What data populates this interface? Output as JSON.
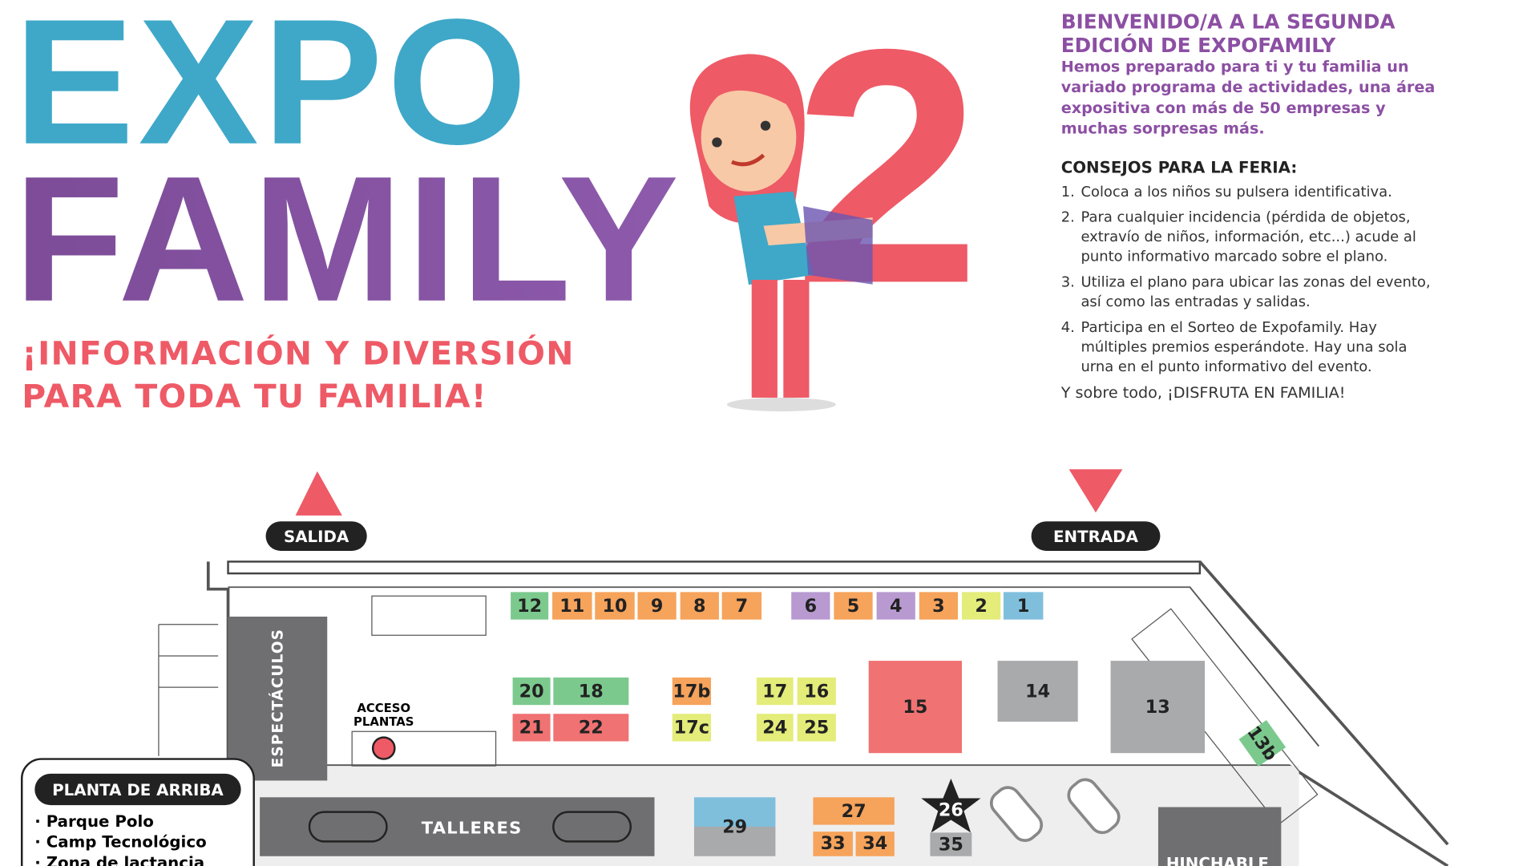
{
  "header": {
    "logo_line1": "EXPO",
    "logo_line2": "FAMILY",
    "logo_number": "2",
    "tagline": [
      "¡INFORMACIÓN Y DIVERSIÓN",
      "PARA TODA TU FAMILIA!"
    ]
  },
  "welcome": {
    "title": [
      "BIENVENIDO/A A LA SEGUNDA",
      "EDICIÓN DE EXPOFAMILY"
    ],
    "body": [
      "Hemos preparado para ti y tu familia un",
      "variado programa de actividades, una área",
      "expositiva con más de 50 empresas y",
      "muchas sorpresas más."
    ]
  },
  "tips": {
    "title": "CONSEJOS PARA LA FERIA:",
    "items": [
      {
        "number": "1.",
        "lines": [
          "Coloca a los niños su pulsera identificativa."
        ]
      },
      {
        "number": "2.",
        "lines": [
          "Para cualquier incidencia (pérdida de objetos,",
          "extravío de niños, información, etc...) acude al",
          "punto informativo marcado sobre el plano."
        ]
      },
      {
        "number": "3.",
        "lines": [
          "Utiliza el plano para ubicar las zonas del evento,",
          "así como las entradas y salidas."
        ]
      },
      {
        "number": "4.",
        "lines": [
          "Participa en el Sorteo de Expofamily. Hay",
          "múltiples premios esperándote. Hay una sola",
          "urna en el punto informativo del evento."
        ]
      }
    ],
    "closing": "Y sobre todo, ¡DISFRUTA EN FAMILIA!"
  },
  "map": {
    "exit": "SALIDA",
    "entrance": "ENTRADA",
    "shows": "ESPECTÁCULOS",
    "workshops": "TALLERES",
    "bouncy": "HINCHABLE",
    "plant_access": [
      "ACCESO",
      "PLANTAS"
    ],
    "upper_floor": {
      "title": "PLANTA DE ARRIBA",
      "items": [
        "· Parque Polo",
        "· Camp Tecnológico",
        "· Zona de lactancia"
      ]
    },
    "booths": [
      "12",
      "11",
      "10",
      "9",
      "8",
      "7",
      "6",
      "5",
      "4",
      "3",
      "2",
      "1",
      "20",
      "18",
      "21",
      "22",
      "17b",
      "17c",
      "17",
      "16",
      "24",
      "25",
      "15",
      "14",
      "13",
      "13b",
      "29",
      "27",
      "33",
      "34",
      "26",
      "35"
    ]
  }
}
